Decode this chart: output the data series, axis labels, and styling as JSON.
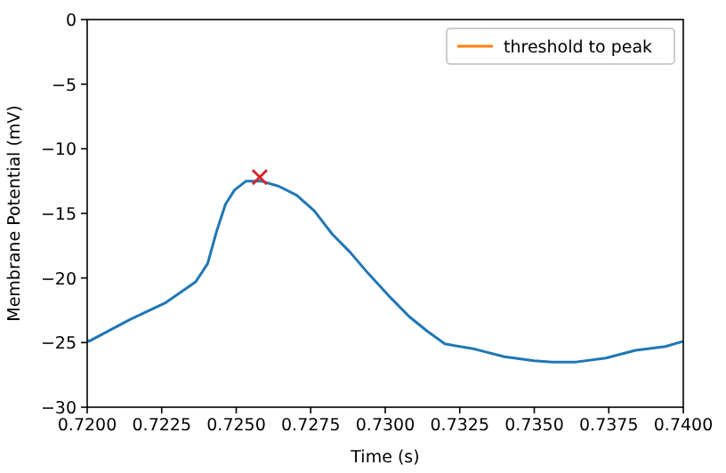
{
  "chart_data": {
    "type": "line",
    "xlabel": "Time (s)",
    "ylabel": "Membrane Potential (mV)",
    "xlim": [
      0.72,
      0.74
    ],
    "ylim": [
      -30,
      0
    ],
    "xticks": [
      {
        "value": 0.72,
        "label": "0.7200"
      },
      {
        "value": 0.7225,
        "label": "0.7225"
      },
      {
        "value": 0.725,
        "label": "0.7250"
      },
      {
        "value": 0.7275,
        "label": "0.7275"
      },
      {
        "value": 0.73,
        "label": "0.7300"
      },
      {
        "value": 0.7325,
        "label": "0.7325"
      },
      {
        "value": 0.735,
        "label": "0.7350"
      },
      {
        "value": 0.7375,
        "label": "0.7375"
      },
      {
        "value": 0.74,
        "label": "0.7400"
      }
    ],
    "yticks": [
      {
        "value": -30,
        "label": "−30"
      },
      {
        "value": -25,
        "label": "−25"
      },
      {
        "value": -20,
        "label": "−20"
      },
      {
        "value": -15,
        "label": "−15"
      },
      {
        "value": -10,
        "label": "−10"
      },
      {
        "value": -5,
        "label": "−5"
      },
      0
    ],
    "grid": false,
    "legend": "top right",
    "line_style": "solid",
    "series": [
      {
        "color": "#1f77b4",
        "marker": "none",
        "x": [
          0.72,
          0.72006,
          0.72145,
          0.72264,
          0.72364,
          0.72404,
          0.72434,
          0.72464,
          0.72494,
          0.72533,
          0.72583,
          0.72643,
          0.72703,
          0.72762,
          0.72822,
          0.72882,
          0.72941,
          0.73021,
          0.73081,
          0.7314,
          0.732,
          0.733,
          0.734,
          0.735,
          0.7356,
          0.7364,
          0.7374,
          0.7384,
          0.7394,
          0.74
        ],
        "values": [
          -24.8,
          -24.9,
          -23.2,
          -21.9,
          -20.3,
          -18.9,
          -16.4,
          -14.3,
          -13.2,
          -12.5,
          -12.5,
          -12.9,
          -13.6,
          -14.8,
          -16.6,
          -18,
          -19.6,
          -21.6,
          -23,
          -24.1,
          -25.1,
          -25.5,
          -26.1,
          -26.4,
          -26.5,
          -26.5,
          -26.2,
          -25.6,
          -25.3,
          -24.9
        ]
      },
      {
        "type": "line",
        "name": "threshold to peak",
        "color": "#ff7f0e",
        "marker": "none"
      },
      {
        "type": "scatter",
        "color": "#d62728",
        "marker": "cross",
        "x": [
          0.72579
        ],
        "values": [
          -12.2
        ]
      }
    ]
  }
}
